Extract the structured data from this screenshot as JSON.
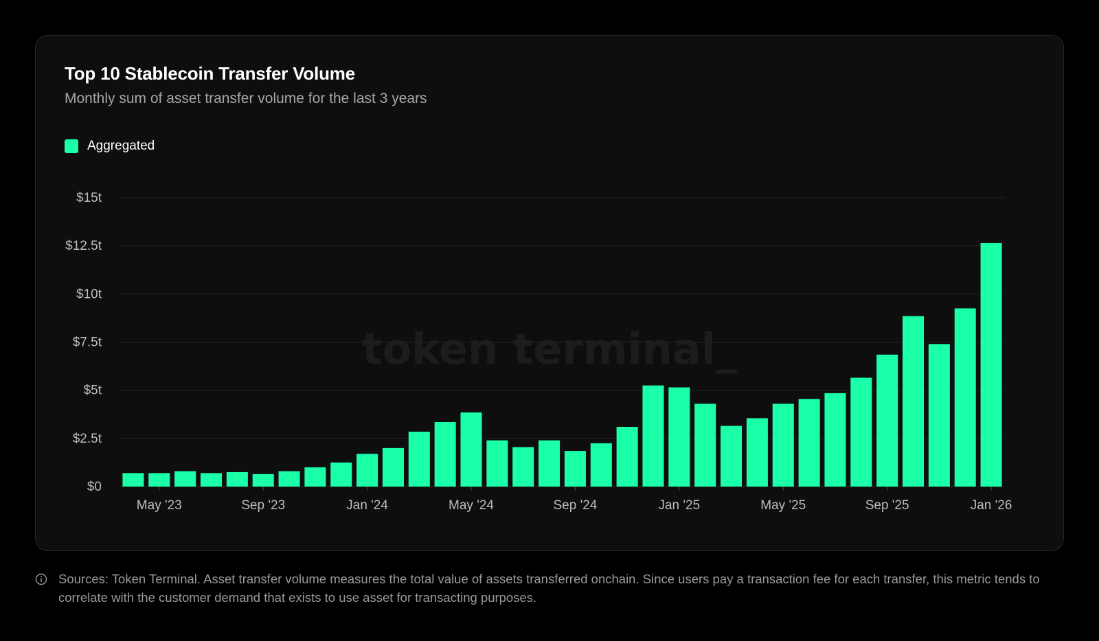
{
  "card": {
    "title": "Top 10 Stablecoin Transfer Volume",
    "subtitle": "Monthly sum of asset transfer volume for the last 3 years",
    "watermark": "token terminal_"
  },
  "footnote": {
    "icon": "info-icon",
    "text": "Sources: Token Terminal. Asset transfer volume measures the total value of assets transferred onchain. Since users pay a transaction fee for each transfer, this metric tends to correlate with the customer demand that exists to use asset for transacting purposes."
  },
  "colors": {
    "background": "#000000",
    "card": "#0e0e0e",
    "bar": "#1affa8",
    "grid": "#252525",
    "tick_text": "#bdbdbd"
  },
  "chart_data": {
    "type": "bar",
    "title": "Top 10 Stablecoin Transfer Volume",
    "subtitle": "Monthly sum of asset transfer volume for the last 3 years",
    "xlabel": "",
    "ylabel": "",
    "ylim": [
      0,
      15
    ],
    "y_unit": "trillion USD",
    "grid": true,
    "legend_position": "top-left",
    "y_ticks": [
      {
        "value": 0,
        "label": "$0"
      },
      {
        "value": 2.5,
        "label": "$2.5t"
      },
      {
        "value": 5,
        "label": "$5t"
      },
      {
        "value": 7.5,
        "label": "$7.5t"
      },
      {
        "value": 10,
        "label": "$10t"
      },
      {
        "value": 12.5,
        "label": "$12.5t"
      },
      {
        "value": 15,
        "label": "$15t"
      }
    ],
    "x_ticks": [
      {
        "category": "2023-05",
        "label": "May '23"
      },
      {
        "category": "2023-09",
        "label": "Sep '23"
      },
      {
        "category": "2024-01",
        "label": "Jan '24"
      },
      {
        "category": "2024-05",
        "label": "May '24"
      },
      {
        "category": "2024-09",
        "label": "Sep '24"
      },
      {
        "category": "2025-01",
        "label": "Jan '25"
      },
      {
        "category": "2025-05",
        "label": "May '25"
      },
      {
        "category": "2025-09",
        "label": "Sep '25"
      },
      {
        "category": "2026-01",
        "label": "Jan '26"
      }
    ],
    "categories": [
      "2023-04",
      "2023-05",
      "2023-06",
      "2023-07",
      "2023-08",
      "2023-09",
      "2023-10",
      "2023-11",
      "2023-12",
      "2024-01",
      "2024-02",
      "2024-03",
      "2024-04",
      "2024-05",
      "2024-06",
      "2024-07",
      "2024-08",
      "2024-09",
      "2024-10",
      "2024-11",
      "2024-12",
      "2025-01",
      "2025-02",
      "2025-03",
      "2025-04",
      "2025-05",
      "2025-06",
      "2025-07",
      "2025-08",
      "2025-09",
      "2025-10",
      "2025-11",
      "2025-12",
      "2026-01"
    ],
    "series": [
      {
        "name": "Aggregated",
        "color": "#1affa8",
        "values": [
          0.7,
          0.7,
          0.8,
          0.7,
          0.75,
          0.65,
          0.8,
          1.0,
          1.25,
          1.7,
          2.0,
          2.85,
          3.35,
          3.85,
          2.4,
          2.05,
          2.4,
          1.85,
          2.25,
          3.1,
          5.25,
          5.15,
          4.3,
          3.15,
          3.55,
          4.3,
          4.55,
          4.85,
          5.65,
          6.85,
          8.85,
          7.4,
          9.25,
          12.65
        ]
      }
    ]
  }
}
